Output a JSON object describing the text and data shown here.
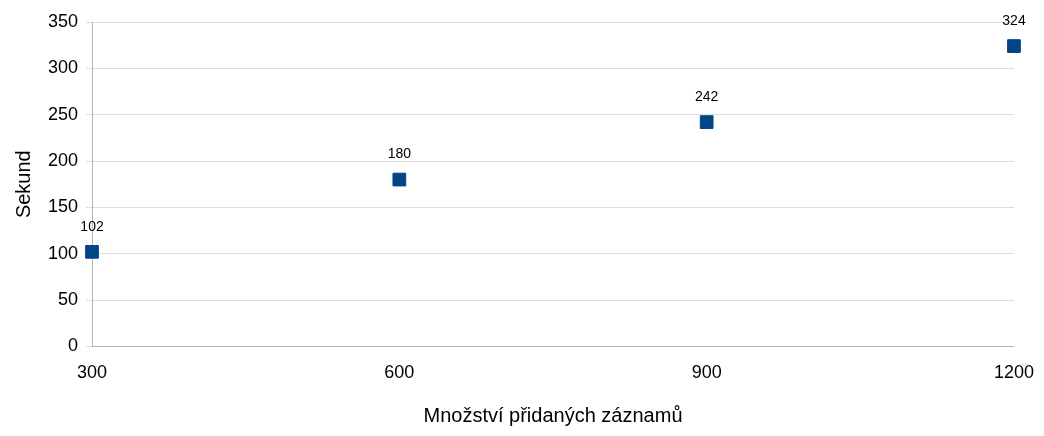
{
  "chart_data": {
    "type": "scatter",
    "xlabel": "Množství přidaných záznamů",
    "ylabel": "Sekund",
    "x": [
      300,
      600,
      900,
      1200
    ],
    "series": [
      {
        "color": "#004586",
        "values": [
          102,
          180,
          242,
          324
        ]
      }
    ],
    "xlim": [
      300,
      1200
    ],
    "xticks": [
      300,
      600,
      900,
      1200
    ],
    "ylim": [
      0,
      350
    ],
    "yticks": [
      0,
      50,
      100,
      150,
      200,
      250,
      300,
      350
    ],
    "grid": "y",
    "legend": false,
    "marker": "square",
    "data_labels": true
  }
}
